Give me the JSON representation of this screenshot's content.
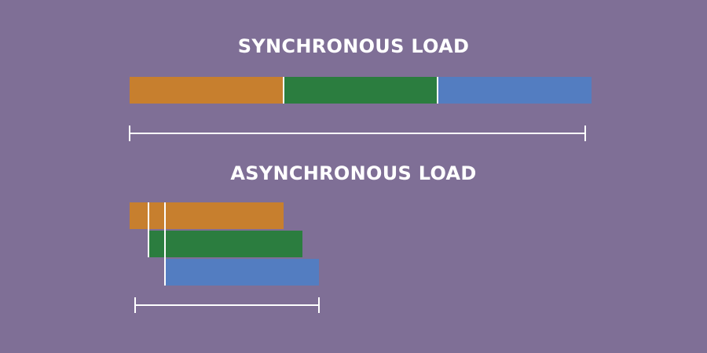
{
  "colors": {
    "background": "#7f6f96",
    "text": "#ffffff",
    "line": "#ffffff",
    "resource_1": "#c77f2e",
    "resource_2": "#2b7d3f",
    "resource_3": "#537dc1"
  },
  "sync": {
    "title": "SYNCHRONOUS LOAD",
    "resources": [
      {
        "color_key": "resource_1",
        "start": 0,
        "duration": 1
      },
      {
        "color_key": "resource_2",
        "start": 1,
        "duration": 1
      },
      {
        "color_key": "resource_3",
        "start": 2,
        "duration": 1
      }
    ],
    "total_time": 3
  },
  "async": {
    "title": "ASYNCHRONOUS LOAD",
    "resources": [
      {
        "color_key": "resource_1",
        "start": 0,
        "duration": 1
      },
      {
        "color_key": "resource_2",
        "start": 0.12,
        "duration": 1
      },
      {
        "color_key": "resource_3",
        "start": 0.23,
        "duration": 1
      }
    ],
    "total_time": 1.23
  }
}
